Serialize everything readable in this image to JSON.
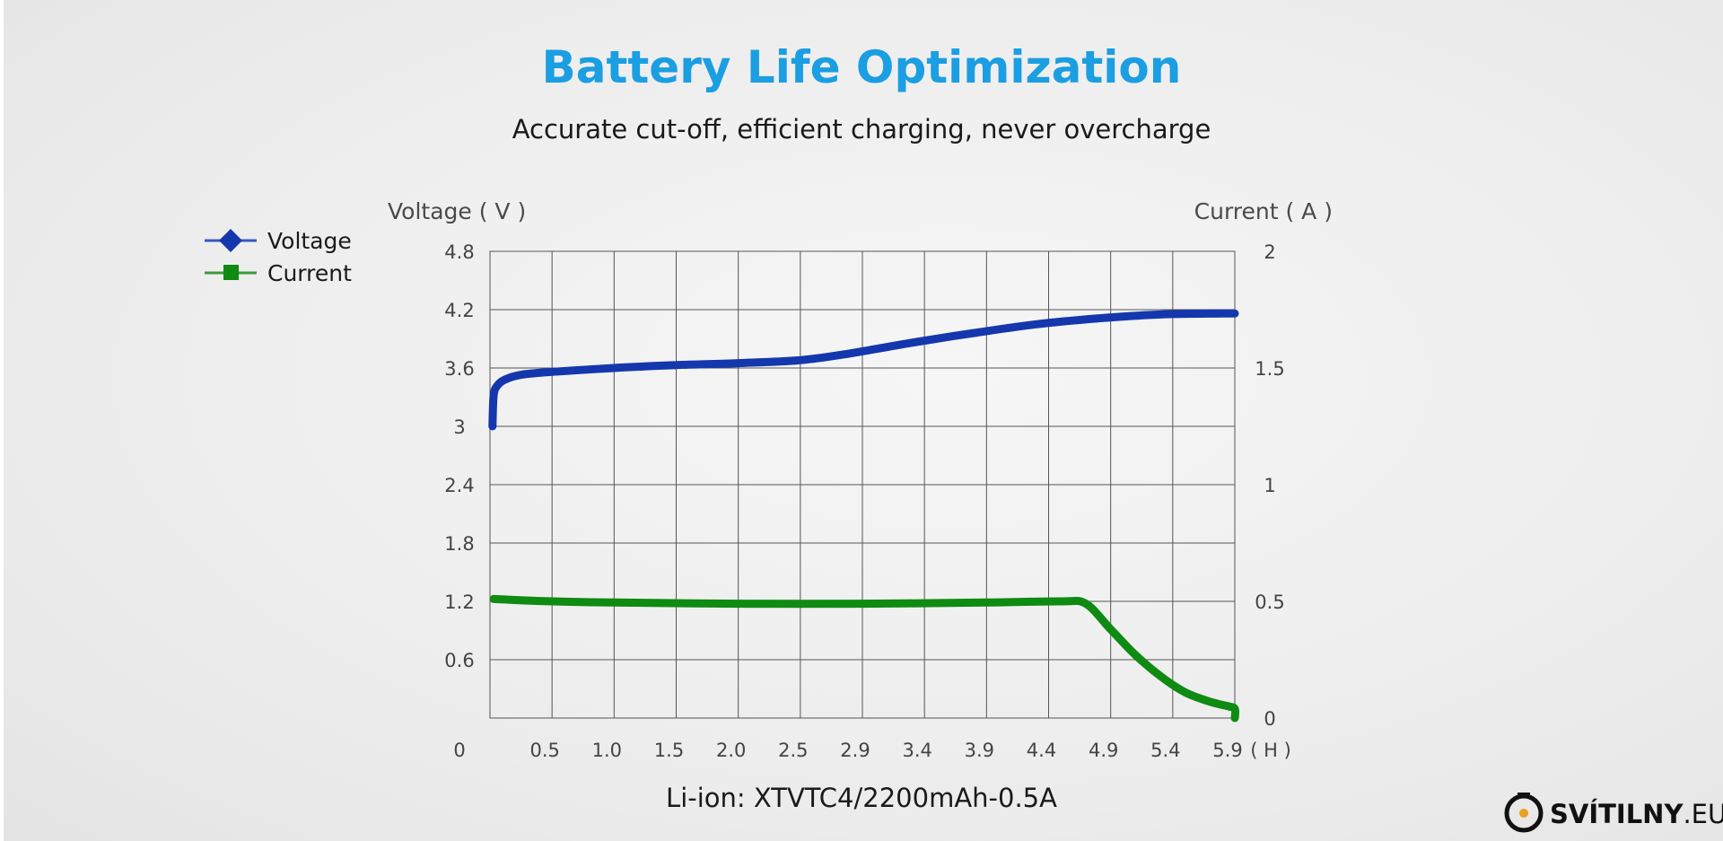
{
  "chart_data": {
    "type": "line",
    "title": "Battery Life Optimization",
    "subtitle": "Accurate cut-off, efficient charging, never overcharge",
    "caption": "Li-ion: XTVTC4/2200mAh-0.5A",
    "y_left_label": "Voltage ( V )",
    "y_right_label": "Current ( A )",
    "x_unit_label": "( H )",
    "x_origin_label": "0",
    "x_ticks": [
      "0.5",
      "1.0",
      "1.5",
      "2.0",
      "2.5",
      "2.9",
      "3.4",
      "3.9",
      "4.4",
      "4.9",
      "5.4",
      "5.9"
    ],
    "y_left_ticks": [
      "0.6",
      "1.2",
      "1.8",
      "2.4",
      "3",
      "3.6",
      "4.2",
      "4.8"
    ],
    "y_left_range": [
      0,
      4.8
    ],
    "y_right_ticks": [
      "0",
      "0.5",
      "1",
      "1.5",
      "2"
    ],
    "y_right_range": [
      0,
      2
    ],
    "x_range": [
      0,
      6
    ],
    "grid": true,
    "legend_position": "top-left",
    "series": [
      {
        "name": "Voltage",
        "axis": "left",
        "color": "#1537ad",
        "marker": "diamond",
        "x": [
          0.02,
          0.03,
          0.06,
          0.12,
          0.25,
          0.5,
          1.0,
          1.5,
          2.0,
          2.5,
          2.9,
          3.4,
          3.9,
          4.4,
          4.9,
          5.4,
          5.9,
          6.0
        ],
        "y": [
          3.0,
          3.32,
          3.42,
          3.48,
          3.53,
          3.56,
          3.6,
          3.63,
          3.65,
          3.68,
          3.75,
          3.86,
          3.96,
          4.05,
          4.11,
          4.15,
          4.16,
          4.16
        ]
      },
      {
        "name": "Current",
        "axis": "right",
        "color": "#0f8a12",
        "marker": "square",
        "x": [
          0.03,
          0.5,
          1.0,
          2.0,
          3.0,
          4.0,
          4.6,
          4.8,
          5.0,
          5.2,
          5.4,
          5.6,
          5.8,
          5.95,
          6.0,
          6.0
        ],
        "y": [
          0.51,
          0.5,
          0.495,
          0.49,
          0.49,
          0.495,
          0.5,
          0.49,
          0.38,
          0.27,
          0.18,
          0.11,
          0.07,
          0.05,
          0.04,
          0.0
        ]
      }
    ]
  },
  "logo": {
    "name": "SVÍTILNY",
    "suffix": ".EU"
  }
}
